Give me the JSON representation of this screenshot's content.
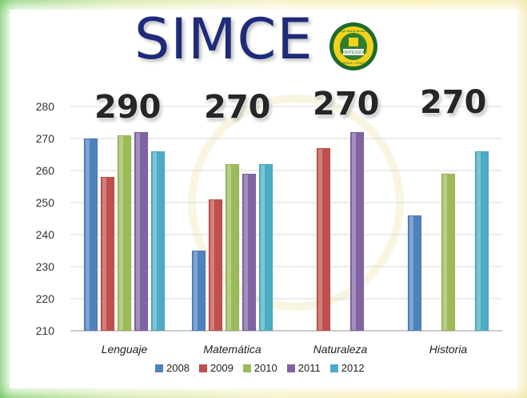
{
  "title": "SIMCE",
  "logo": {
    "text_top": "Colegio María Montessori",
    "text_mid": "MONTESSORI",
    "text_bottom": "ARICA - CHILE"
  },
  "chart_data": {
    "type": "bar",
    "categories": [
      "Lenguaje",
      "Matemática",
      "Naturaleza",
      "Historia"
    ],
    "series": [
      {
        "name": "2008",
        "values": [
          270,
          235,
          null,
          246
        ]
      },
      {
        "name": "2009",
        "values": [
          258,
          251,
          267,
          null
        ]
      },
      {
        "name": "2010",
        "values": [
          271,
          262,
          null,
          259
        ]
      },
      {
        "name": "2011",
        "values": [
          272,
          259,
          272,
          null
        ]
      },
      {
        "name": "2012",
        "values": [
          266,
          262,
          null,
          266
        ]
      }
    ],
    "ylim": [
      210,
      280
    ],
    "yticks": [
      210,
      220,
      230,
      240,
      250,
      260,
      270,
      280
    ],
    "grid": true,
    "legend": "bottom",
    "annotations": [
      "290",
      "270",
      "270",
      "270"
    ],
    "colors": [
      "#4f81bd",
      "#c0504d",
      "#9bbb59",
      "#8064a2",
      "#4bacc6"
    ]
  }
}
